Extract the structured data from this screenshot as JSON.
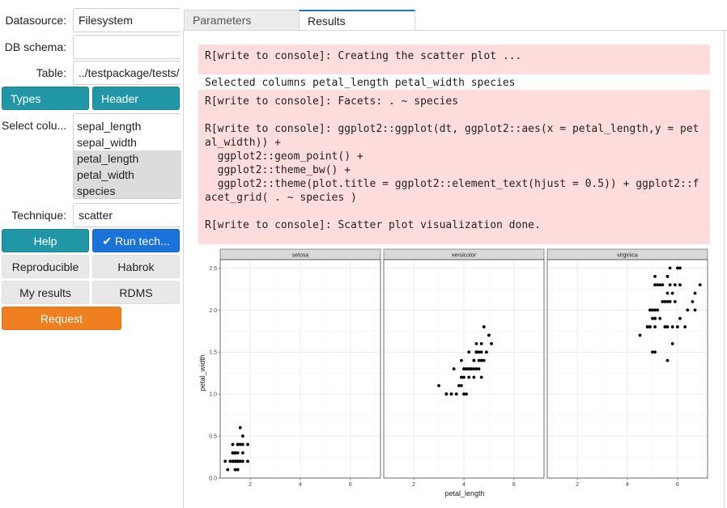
{
  "form": {
    "datasource_label": "Datasource:",
    "datasource_value": "Filesystem",
    "db_schema_label": "DB schema:",
    "db_schema_value": "",
    "table_label": "Table:",
    "table_value": "../testpackage/tests/",
    "select_columns_label": "Select colu...",
    "columns": [
      {
        "name": "sepal_length",
        "selected": false
      },
      {
        "name": "sepal_width",
        "selected": false
      },
      {
        "name": "petal_length",
        "selected": true
      },
      {
        "name": "petal_width",
        "selected": true
      },
      {
        "name": "species",
        "selected": true
      }
    ],
    "technique_label": "Technique:",
    "technique_value": "scatter"
  },
  "buttons": {
    "types": "Types",
    "header": "Header",
    "help": "Help",
    "run_technique": "Run tech...",
    "run_icon": "check-icon",
    "reproducible": "Reproducible",
    "habrok": "Habrok",
    "my_results": "My results",
    "rdms": "RDMS",
    "request": "Request"
  },
  "tabs": [
    {
      "label": "Parameters",
      "active": false
    },
    {
      "label": "Results",
      "active": true
    }
  ],
  "console": {
    "msg1": "R[write to console]: Creating the scatter plot ...",
    "selected_columns": "Selected columns petal_length petal_width species",
    "msg2": "R[write to console]: Facets: . ~ species\n\nR[write to console]: ggplot2::ggplot(dt, ggplot2::aes(x = petal_length,y = petal_width)) +\n  ggplot2::geom_point() +\n  ggplot2::theme_bw() +\n  ggplot2::theme(plot.title = ggplot2::element_text(hjust = 0.5)) + ggplot2::facet_grid( . ~ species )\n\nR[write to console]: Scatter plot visualization done."
  },
  "colors": {
    "teal": "#2196a6",
    "blue": "#1a73d9",
    "orange": "#f07f1f",
    "console_bg": "#ffdddd",
    "strip_bg": "#d9d9d9"
  },
  "chart_data": {
    "type": "scatter",
    "xlabel": "petal_length",
    "ylabel": "petal_width",
    "xlim": [
      0.8,
      7.2
    ],
    "ylim": [
      0,
      2.6
    ],
    "x_ticks": [
      2,
      4,
      6
    ],
    "y_ticks": [
      0.0,
      0.5,
      1.0,
      1.5,
      2.0,
      2.5
    ],
    "grid": true,
    "facets": [
      {
        "name": "setosa",
        "points": [
          [
            1.4,
            0.2
          ],
          [
            1.4,
            0.2
          ],
          [
            1.3,
            0.2
          ],
          [
            1.5,
            0.2
          ],
          [
            1.4,
            0.2
          ],
          [
            1.7,
            0.4
          ],
          [
            1.4,
            0.3
          ],
          [
            1.5,
            0.2
          ],
          [
            1.4,
            0.2
          ],
          [
            1.5,
            0.1
          ],
          [
            1.5,
            0.2
          ],
          [
            1.6,
            0.2
          ],
          [
            1.4,
            0.1
          ],
          [
            1.1,
            0.1
          ],
          [
            1.2,
            0.2
          ],
          [
            1.5,
            0.4
          ],
          [
            1.3,
            0.4
          ],
          [
            1.4,
            0.3
          ],
          [
            1.7,
            0.3
          ],
          [
            1.5,
            0.3
          ],
          [
            1.7,
            0.2
          ],
          [
            1.5,
            0.4
          ],
          [
            1.0,
            0.2
          ],
          [
            1.7,
            0.5
          ],
          [
            1.9,
            0.2
          ],
          [
            1.6,
            0.2
          ],
          [
            1.6,
            0.4
          ],
          [
            1.5,
            0.2
          ],
          [
            1.4,
            0.2
          ],
          [
            1.6,
            0.2
          ],
          [
            1.6,
            0.2
          ],
          [
            1.5,
            0.4
          ],
          [
            1.5,
            0.1
          ],
          [
            1.4,
            0.2
          ],
          [
            1.5,
            0.2
          ],
          [
            1.2,
            0.2
          ],
          [
            1.3,
            0.2
          ],
          [
            1.4,
            0.1
          ],
          [
            1.3,
            0.2
          ],
          [
            1.5,
            0.2
          ],
          [
            1.3,
            0.3
          ],
          [
            1.3,
            0.3
          ],
          [
            1.3,
            0.2
          ],
          [
            1.6,
            0.6
          ],
          [
            1.9,
            0.4
          ],
          [
            1.4,
            0.3
          ],
          [
            1.6,
            0.2
          ],
          [
            1.4,
            0.2
          ],
          [
            1.5,
            0.2
          ],
          [
            1.4,
            0.2
          ]
        ]
      },
      {
        "name": "versicolor",
        "points": [
          [
            4.7,
            1.4
          ],
          [
            4.5,
            1.5
          ],
          [
            4.9,
            1.5
          ],
          [
            4.0,
            1.3
          ],
          [
            4.6,
            1.5
          ],
          [
            4.5,
            1.3
          ],
          [
            4.7,
            1.6
          ],
          [
            3.3,
            1.0
          ],
          [
            4.6,
            1.3
          ],
          [
            3.9,
            1.4
          ],
          [
            3.5,
            1.0
          ],
          [
            4.2,
            1.5
          ],
          [
            4.0,
            1.0
          ],
          [
            4.7,
            1.4
          ],
          [
            3.6,
            1.3
          ],
          [
            4.4,
            1.4
          ],
          [
            4.5,
            1.5
          ],
          [
            4.1,
            1.0
          ],
          [
            4.5,
            1.5
          ],
          [
            3.9,
            1.1
          ],
          [
            4.8,
            1.8
          ],
          [
            4.0,
            1.3
          ],
          [
            4.9,
            1.5
          ],
          [
            4.7,
            1.2
          ],
          [
            4.3,
            1.3
          ],
          [
            4.4,
            1.4
          ],
          [
            4.8,
            1.4
          ],
          [
            5.0,
            1.7
          ],
          [
            4.5,
            1.5
          ],
          [
            3.5,
            1.0
          ],
          [
            3.8,
            1.1
          ],
          [
            3.7,
            1.0
          ],
          [
            3.9,
            1.2
          ],
          [
            5.1,
            1.6
          ],
          [
            4.5,
            1.5
          ],
          [
            4.5,
            1.6
          ],
          [
            4.7,
            1.5
          ],
          [
            4.4,
            1.3
          ],
          [
            4.1,
            1.3
          ],
          [
            4.0,
            1.3
          ],
          [
            4.4,
            1.2
          ],
          [
            4.6,
            1.4
          ],
          [
            4.0,
            1.2
          ],
          [
            3.3,
            1.0
          ],
          [
            4.2,
            1.3
          ],
          [
            4.2,
            1.2
          ],
          [
            4.2,
            1.3
          ],
          [
            4.3,
            1.3
          ],
          [
            3.0,
            1.1
          ],
          [
            4.1,
            1.3
          ]
        ]
      },
      {
        "name": "virginica",
        "points": [
          [
            6.0,
            2.5
          ],
          [
            5.1,
            1.9
          ],
          [
            5.9,
            2.1
          ],
          [
            5.6,
            1.8
          ],
          [
            5.8,
            2.2
          ],
          [
            6.6,
            2.1
          ],
          [
            4.5,
            1.7
          ],
          [
            6.3,
            1.8
          ],
          [
            5.8,
            1.8
          ],
          [
            6.1,
            2.5
          ],
          [
            5.1,
            2.0
          ],
          [
            5.3,
            1.9
          ],
          [
            5.5,
            2.1
          ],
          [
            5.0,
            2.0
          ],
          [
            5.1,
            2.4
          ],
          [
            5.3,
            2.3
          ],
          [
            5.5,
            1.8
          ],
          [
            6.7,
            2.2
          ],
          [
            6.9,
            2.3
          ],
          [
            5.0,
            1.5
          ],
          [
            5.7,
            2.3
          ],
          [
            4.9,
            2.0
          ],
          [
            6.7,
            2.0
          ],
          [
            4.9,
            1.8
          ],
          [
            5.7,
            2.1
          ],
          [
            6.0,
            1.8
          ],
          [
            4.8,
            1.8
          ],
          [
            4.9,
            1.8
          ],
          [
            5.6,
            2.1
          ],
          [
            5.8,
            1.6
          ],
          [
            6.1,
            1.9
          ],
          [
            6.4,
            2.0
          ],
          [
            5.6,
            2.2
          ],
          [
            5.1,
            1.5
          ],
          [
            5.6,
            1.4
          ],
          [
            6.1,
            2.3
          ],
          [
            5.6,
            2.4
          ],
          [
            5.5,
            1.8
          ],
          [
            4.8,
            1.8
          ],
          [
            5.4,
            2.1
          ],
          [
            5.6,
            2.4
          ],
          [
            5.1,
            2.3
          ],
          [
            5.1,
            1.9
          ],
          [
            5.9,
            2.3
          ],
          [
            5.7,
            2.5
          ],
          [
            5.2,
            2.3
          ],
          [
            5.0,
            1.9
          ],
          [
            5.2,
            2.0
          ],
          [
            5.4,
            2.3
          ],
          [
            5.1,
            1.8
          ]
        ]
      }
    ]
  }
}
